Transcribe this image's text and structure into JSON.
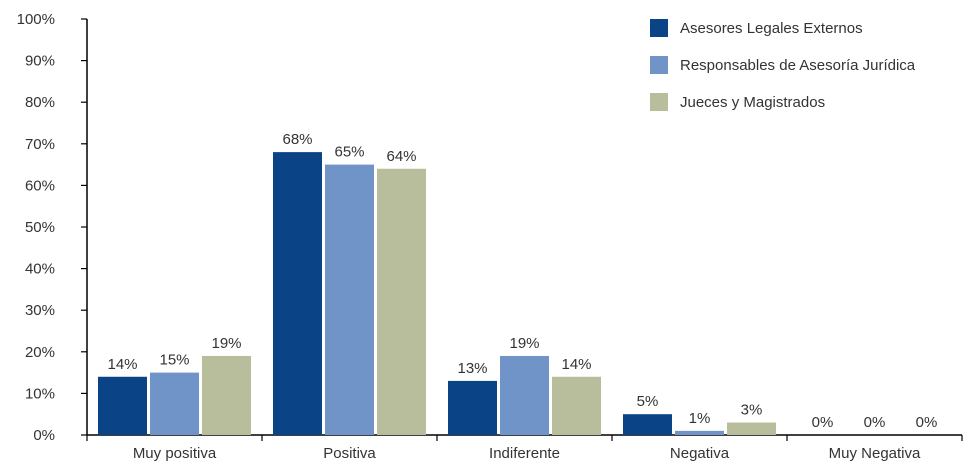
{
  "chart_data": {
    "type": "bar",
    "title": "",
    "xlabel": "",
    "ylabel": "",
    "ylim": [
      0,
      100
    ],
    "ytick_labels": [
      "0%",
      "10%",
      "20%",
      "30%",
      "40%",
      "50%",
      "60%",
      "70%",
      "80%",
      "90%",
      "100%"
    ],
    "y_unit": "%",
    "categories": [
      "Muy positiva",
      "Positiva",
      "Indiferente",
      "Negativa",
      "Muy Negativa"
    ],
    "series": [
      {
        "name": "Asesores Legales Externos",
        "color": "#0b4387",
        "values": [
          14,
          68,
          13,
          5,
          0
        ],
        "labels": [
          "14%",
          "68%",
          "13%",
          "5%",
          "0%"
        ]
      },
      {
        "name": "Responsables de Asesoría Jurídica",
        "color": "#7094c8",
        "values": [
          15,
          65,
          19,
          1,
          0
        ],
        "labels": [
          "15%",
          "65%",
          "19%",
          "1%",
          "0%"
        ]
      },
      {
        "name": "Jueces y Magistrados",
        "color": "#b8bd9b",
        "values": [
          19,
          64,
          14,
          3,
          0
        ],
        "labels": [
          "19%",
          "64%",
          "14%",
          "3%",
          "0%"
        ]
      }
    ],
    "grid": false,
    "legend_position": "top-right"
  }
}
